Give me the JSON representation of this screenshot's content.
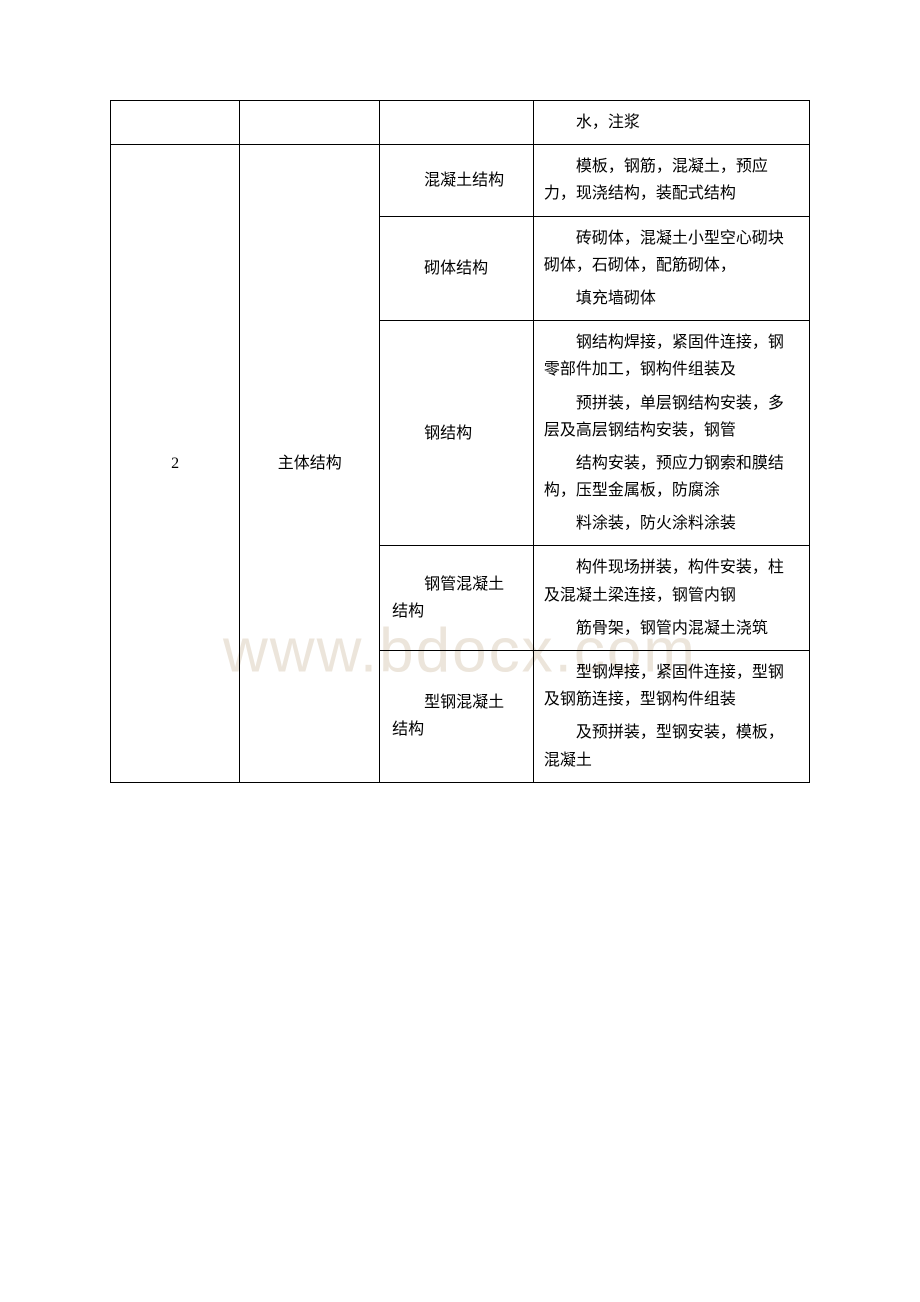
{
  "watermark": "www.bdocx.com",
  "table": {
    "border_color": "#000000",
    "background_color": "#ffffff",
    "text_color": "#000000",
    "font_size": 16,
    "font_family": "SimSun",
    "watermark_color": "#ece5db",
    "rows": [
      {
        "col1": "",
        "col2": "",
        "col3": "",
        "col4_p1": "水，注浆"
      },
      {
        "col1": "2",
        "col2": "主体结构",
        "sub": [
          {
            "col3": "混凝土结构",
            "col4_p1": "模板，钢筋，混凝土，预应力，现浇结构，装配式结构"
          },
          {
            "col3": "砌体结构",
            "col4_p1": "砖砌体，混凝土小型空心砌块砌体，石砌体，配筋砌体，",
            "col4_p2": "填充墙砌体"
          },
          {
            "col3": "钢结构",
            "col4_p1": "钢结构焊接，紧固件连接，钢零部件加工，钢构件组装及",
            "col4_p2": "预拼装，单层钢结构安装，多层及高层钢结构安装，钢管",
            "col4_p3": "结构安装，预应力钢索和膜结构，压型金属板，防腐涂",
            "col4_p4": "料涂装，防火涂料涂装"
          },
          {
            "col3_line1": "钢管混凝土",
            "col3_line2": "结构",
            "col4_p1": "构件现场拼装，构件安装，柱及混凝土梁连接，钢管内钢",
            "col4_p2": "筋骨架，钢管内混凝土浇筑"
          },
          {
            "col3_line1": "型钢混凝土",
            "col3_line2": "结构",
            "col4_p1": "型钢焊接，紧固件连接，型钢及钢筋连接，型钢构件组装",
            "col4_p2": "及预拼装，型钢安装，模板，混凝土"
          }
        ]
      }
    ]
  }
}
